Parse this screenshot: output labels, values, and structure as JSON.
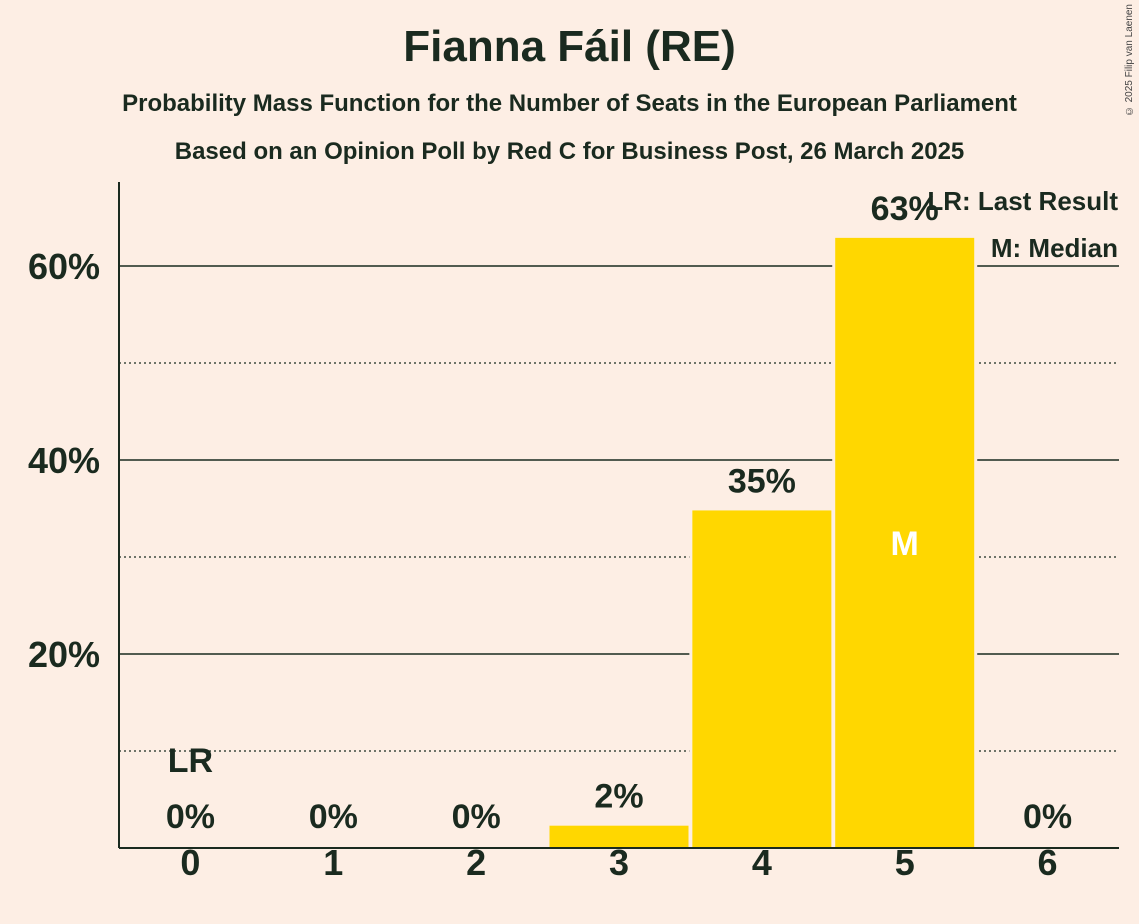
{
  "title": "Fianna Fáil (RE)",
  "subtitle1": "Probability Mass Function for the Number of Seats in the European Parliament",
  "subtitle2": "Based on an Opinion Poll by Red C for Business Post, 26 March 2025",
  "copyright": "© 2025 Filip van Laenen",
  "colors": {
    "bar": "#FFD700",
    "background": "#FDEEE4",
    "text": "#1a2a1f"
  },
  "chart_data": {
    "type": "bar",
    "categories": [
      "0",
      "1",
      "2",
      "3",
      "4",
      "5",
      "6"
    ],
    "values": [
      0,
      0,
      0,
      2.3,
      34.8,
      62.9,
      0
    ],
    "data_labels": [
      "0%",
      "0%",
      "0%",
      "2%",
      "35%",
      "63%",
      "0%"
    ],
    "ylim": [
      0,
      68
    ],
    "yticks": [
      20,
      40,
      60
    ],
    "ytick_labels": [
      "20%",
      "40%",
      "60%"
    ],
    "minor_gridlines": [
      10,
      30,
      50
    ],
    "last_result_seat": "0",
    "last_result_marker": "LR",
    "median_seat": "5",
    "median_marker": "M",
    "legend": [
      "LR: Last Result",
      "M: Median"
    ],
    "legend_position": "top-right"
  }
}
